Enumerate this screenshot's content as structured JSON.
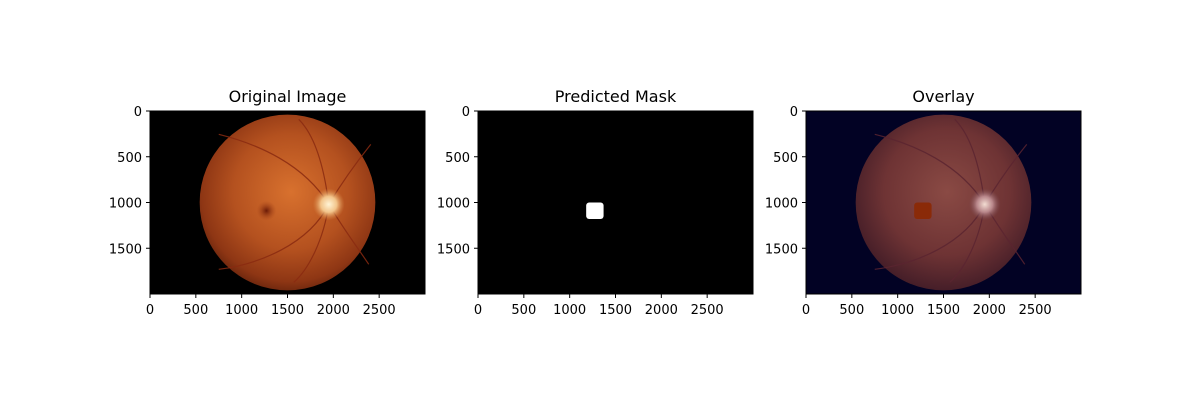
{
  "chart_data": [
    {
      "type": "image",
      "title": "Original Image",
      "xlim": [
        0,
        3000
      ],
      "ylim": [
        2000,
        0
      ],
      "xticks": [
        0,
        500,
        1000,
        1500,
        2000,
        2500
      ],
      "yticks": [
        0,
        500,
        1000,
        1500
      ],
      "content": "fundus",
      "background_color": "#000000",
      "fundus": {
        "center": [
          1500,
          1000
        ],
        "radius": 960,
        "optic_disc": [
          1950,
          1020
        ],
        "fovea": [
          1270,
          1090
        ]
      }
    },
    {
      "type": "image",
      "title": "Predicted Mask",
      "xlim": [
        0,
        3000
      ],
      "ylim": [
        2000,
        0
      ],
      "xticks": [
        0,
        500,
        1000,
        1500,
        2000,
        2500
      ],
      "yticks": [
        0,
        500,
        1000,
        1500
      ],
      "content": "mask",
      "background_color": "#000000",
      "mask_region": {
        "x": [
          1180,
          1370
        ],
        "y": [
          1000,
          1180
        ],
        "color": "#ffffff"
      }
    },
    {
      "type": "image",
      "title": "Overlay",
      "xlim": [
        0,
        3000
      ],
      "ylim": [
        2000,
        0
      ],
      "xticks": [
        0,
        500,
        1000,
        1500,
        2000,
        2500
      ],
      "yticks": [
        0,
        500,
        1000,
        1500
      ],
      "content": "overlay",
      "background_color": "#020224",
      "fundus": {
        "center": [
          1500,
          1000
        ],
        "radius": 960,
        "optic_disc": [
          1950,
          1020
        ],
        "fovea": [
          1270,
          1090
        ]
      },
      "mask_region": {
        "x": [
          1180,
          1370
        ],
        "y": [
          1000,
          1180
        ],
        "color": "#8a2a08"
      }
    }
  ]
}
